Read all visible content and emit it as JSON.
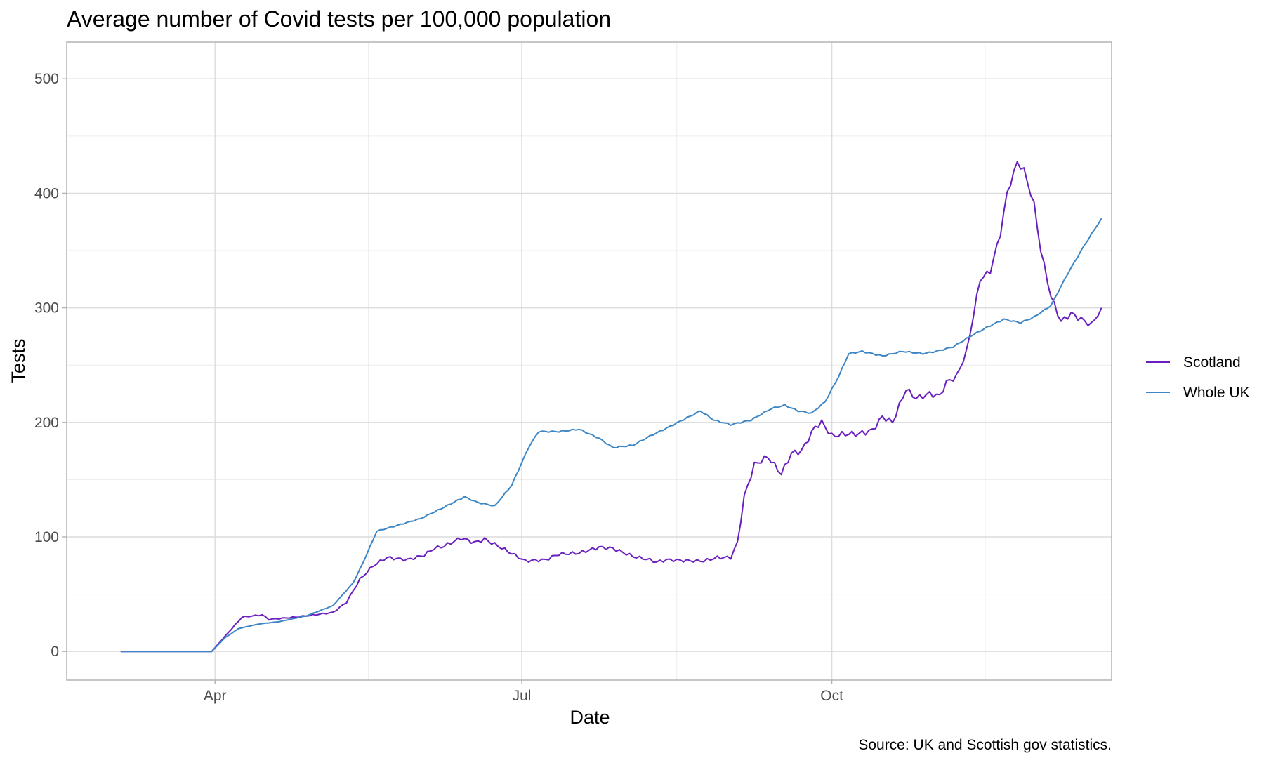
{
  "chart_data": {
    "type": "line",
    "title": "Average number of Covid tests per 100,000 population",
    "xlabel": "Date",
    "ylabel": "Tests",
    "caption": "Source: UK and Scottish gov statistics.",
    "x_ticks": [
      {
        "label": "Apr",
        "date": "2020-04-01"
      },
      {
        "label": "Jul",
        "date": "2020-07-01"
      },
      {
        "label": "Oct",
        "date": "2020-10-01"
      }
    ],
    "y_ticks": [
      0,
      100,
      200,
      300,
      400,
      500
    ],
    "xlim": [
      "2020-02-17",
      "2020-12-23"
    ],
    "ylim": [
      -25,
      532
    ],
    "grid": true,
    "legend_position": "right",
    "series": [
      {
        "name": "Scotland",
        "color": "#6a1fbf",
        "points": [
          [
            "2020-03-04",
            0
          ],
          [
            "2020-03-31",
            0
          ],
          [
            "2020-04-03",
            10
          ],
          [
            "2020-04-06",
            20
          ],
          [
            "2020-04-09",
            30
          ],
          [
            "2020-04-15",
            32
          ],
          [
            "2020-04-17",
            28
          ],
          [
            "2020-04-25",
            30
          ],
          [
            "2020-05-06",
            34
          ],
          [
            "2020-05-10",
            43
          ],
          [
            "2020-05-14",
            63
          ],
          [
            "2020-05-18",
            75
          ],
          [
            "2020-05-22",
            82
          ],
          [
            "2020-05-28",
            80
          ],
          [
            "2020-06-02",
            84
          ],
          [
            "2020-06-05",
            90
          ],
          [
            "2020-06-08",
            92
          ],
          [
            "2020-06-13",
            99
          ],
          [
            "2020-06-17",
            95
          ],
          [
            "2020-06-20",
            98
          ],
          [
            "2020-06-24",
            92
          ],
          [
            "2020-06-29",
            84
          ],
          [
            "2020-07-02",
            79
          ],
          [
            "2020-07-08",
            80
          ],
          [
            "2020-07-12",
            85
          ],
          [
            "2020-07-18",
            86
          ],
          [
            "2020-07-24",
            91
          ],
          [
            "2020-07-28",
            90
          ],
          [
            "2020-08-03",
            83
          ],
          [
            "2020-08-08",
            80
          ],
          [
            "2020-08-10",
            78
          ],
          [
            "2020-08-13",
            80
          ],
          [
            "2020-08-21",
            79
          ],
          [
            "2020-08-24",
            79
          ],
          [
            "2020-08-28",
            82
          ],
          [
            "2020-09-01",
            82
          ],
          [
            "2020-09-03",
            95
          ],
          [
            "2020-09-05",
            135
          ],
          [
            "2020-09-08",
            163
          ],
          [
            "2020-09-12",
            170
          ],
          [
            "2020-09-16",
            155
          ],
          [
            "2020-09-19",
            173
          ],
          [
            "2020-09-22",
            175
          ],
          [
            "2020-09-26",
            196
          ],
          [
            "2020-09-28",
            200
          ],
          [
            "2020-10-01",
            188
          ],
          [
            "2020-10-05",
            190
          ],
          [
            "2020-10-09",
            190
          ],
          [
            "2020-10-13",
            193
          ],
          [
            "2020-10-16",
            205
          ],
          [
            "2020-10-19",
            200
          ],
          [
            "2020-10-23",
            229
          ],
          [
            "2020-10-26",
            221
          ],
          [
            "2020-10-30",
            225
          ],
          [
            "2020-11-02",
            223
          ],
          [
            "2020-11-04",
            235
          ],
          [
            "2020-11-07",
            240
          ],
          [
            "2020-11-10",
            262
          ],
          [
            "2020-11-14",
            325
          ],
          [
            "2020-11-17",
            332
          ],
          [
            "2020-11-20",
            365
          ],
          [
            "2020-11-22",
            400
          ],
          [
            "2020-11-25",
            427
          ],
          [
            "2020-11-27",
            420
          ],
          [
            "2020-11-30",
            390
          ],
          [
            "2020-12-02",
            350
          ],
          [
            "2020-12-05",
            310
          ],
          [
            "2020-12-08",
            288
          ],
          [
            "2020-12-11",
            295
          ],
          [
            "2020-12-14",
            290
          ],
          [
            "2020-12-17",
            285
          ],
          [
            "2020-12-20",
            300
          ]
        ]
      },
      {
        "name": "Whole UK",
        "color": "#3d86c6",
        "points": [
          [
            "2020-03-04",
            0
          ],
          [
            "2020-03-31",
            0
          ],
          [
            "2020-04-04",
            12
          ],
          [
            "2020-04-08",
            20
          ],
          [
            "2020-04-14",
            24
          ],
          [
            "2020-04-20",
            26
          ],
          [
            "2020-04-28",
            31
          ],
          [
            "2020-05-06",
            40
          ],
          [
            "2020-05-12",
            60
          ],
          [
            "2020-05-15",
            78
          ],
          [
            "2020-05-19",
            105
          ],
          [
            "2020-05-25",
            110
          ],
          [
            "2020-06-01",
            116
          ],
          [
            "2020-06-08",
            126
          ],
          [
            "2020-06-14",
            135
          ],
          [
            "2020-06-18",
            130
          ],
          [
            "2020-06-23",
            127
          ],
          [
            "2020-06-28",
            145
          ],
          [
            "2020-07-03",
            178
          ],
          [
            "2020-07-06",
            192
          ],
          [
            "2020-07-12",
            192
          ],
          [
            "2020-07-18",
            194
          ],
          [
            "2020-07-24",
            186
          ],
          [
            "2020-07-28",
            178
          ],
          [
            "2020-08-03",
            180
          ],
          [
            "2020-08-08",
            188
          ],
          [
            "2020-08-13",
            195
          ],
          [
            "2020-08-19",
            204
          ],
          [
            "2020-08-23",
            210
          ],
          [
            "2020-08-27",
            202
          ],
          [
            "2020-09-01",
            198
          ],
          [
            "2020-09-07",
            202
          ],
          [
            "2020-09-13",
            212
          ],
          [
            "2020-09-17",
            215
          ],
          [
            "2020-09-21",
            210
          ],
          [
            "2020-09-25",
            208
          ],
          [
            "2020-09-29",
            218
          ],
          [
            "2020-10-03",
            240
          ],
          [
            "2020-10-06",
            260
          ],
          [
            "2020-10-10",
            262
          ],
          [
            "2020-10-16",
            258
          ],
          [
            "2020-10-22",
            262
          ],
          [
            "2020-10-28",
            260
          ],
          [
            "2020-11-01",
            262
          ],
          [
            "2020-11-06",
            266
          ],
          [
            "2020-11-11",
            275
          ],
          [
            "2020-11-16",
            283
          ],
          [
            "2020-11-21",
            290
          ],
          [
            "2020-11-26",
            287
          ],
          [
            "2020-11-30",
            292
          ],
          [
            "2020-12-05",
            302
          ],
          [
            "2020-12-10",
            330
          ],
          [
            "2020-12-15",
            355
          ],
          [
            "2020-12-20",
            378
          ]
        ]
      }
    ]
  }
}
